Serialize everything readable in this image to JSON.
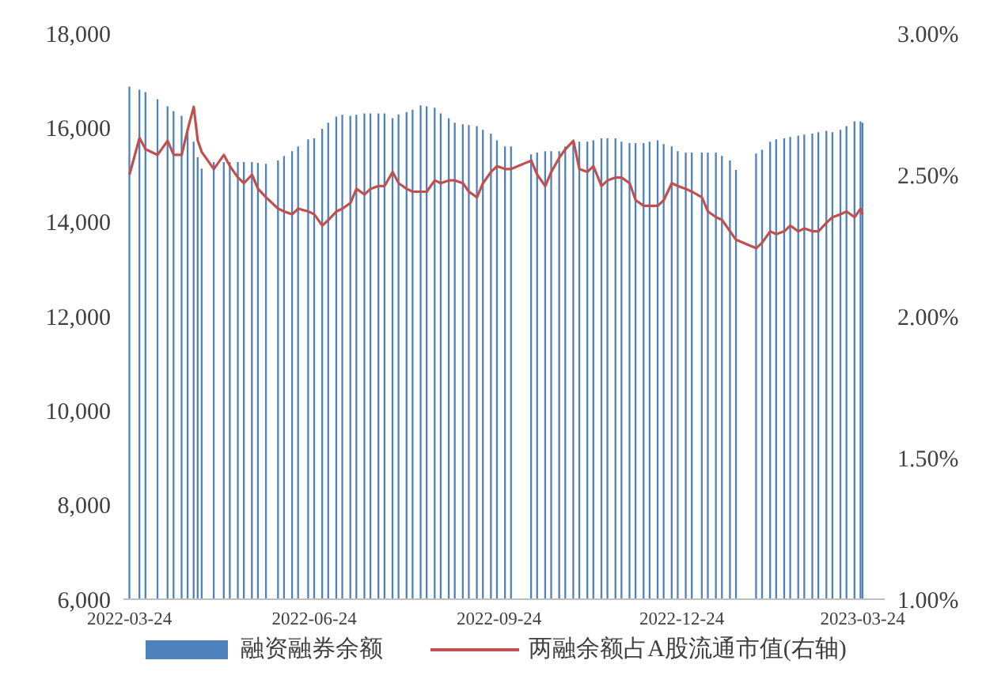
{
  "chart_data": {
    "type": "bar",
    "x": [
      "2022-03-24",
      "2022-03-29",
      "2022-04-01",
      "2022-04-07",
      "2022-04-12",
      "2022-04-15",
      "2022-04-19",
      "2022-04-22",
      "2022-04-25",
      "2022-04-27",
      "2022-04-29",
      "2022-05-05",
      "2022-05-10",
      "2022-05-13",
      "2022-05-17",
      "2022-05-20",
      "2022-05-24",
      "2022-05-27",
      "2022-05-31",
      "2022-06-06",
      "2022-06-09",
      "2022-06-13",
      "2022-06-16",
      "2022-06-21",
      "2022-06-24",
      "2022-06-28",
      "2022-07-01",
      "2022-07-05",
      "2022-07-08",
      "2022-07-12",
      "2022-07-15",
      "2022-07-19",
      "2022-07-22",
      "2022-07-26",
      "2022-07-29",
      "2022-08-02",
      "2022-08-05",
      "2022-08-09",
      "2022-08-12",
      "2022-08-16",
      "2022-08-19",
      "2022-08-23",
      "2022-08-26",
      "2022-08-30",
      "2022-09-02",
      "2022-09-06",
      "2022-09-09",
      "2022-09-13",
      "2022-09-16",
      "2022-09-20",
      "2022-09-23",
      "2022-09-27",
      "2022-09-30",
      "2022-10-10",
      "2022-10-13",
      "2022-10-17",
      "2022-10-20",
      "2022-10-24",
      "2022-10-27",
      "2022-10-31",
      "2022-11-03",
      "2022-11-07",
      "2022-11-10",
      "2022-11-14",
      "2022-11-17",
      "2022-11-21",
      "2022-11-24",
      "2022-11-28",
      "2022-12-01",
      "2022-12-05",
      "2022-12-08",
      "2022-12-12",
      "2022-12-15",
      "2022-12-19",
      "2022-12-22",
      "2022-12-26",
      "2022-12-29",
      "2023-01-03",
      "2023-01-06",
      "2023-01-10",
      "2023-01-13",
      "2023-01-17",
      "2023-01-20",
      "2023-01-30",
      "2023-02-02",
      "2023-02-06",
      "2023-02-09",
      "2023-02-13",
      "2023-02-16",
      "2023-02-20",
      "2023-02-23",
      "2023-02-27",
      "2023-03-02",
      "2023-03-06",
      "2023-03-09",
      "2023-03-13",
      "2023-03-16",
      "2023-03-20",
      "2023-03-23",
      "2023-03-24"
    ],
    "series": [
      {
        "name": "融资融券余额",
        "color": "#4f81bd",
        "values": [
          16870,
          16800,
          16750,
          16600,
          16450,
          16350,
          16250,
          15970,
          15700,
          15370,
          15130,
          15270,
          15270,
          15270,
          15270,
          15270,
          15270,
          15250,
          15230,
          15300,
          15400,
          15500,
          15600,
          15750,
          15770,
          15970,
          16100,
          16230,
          16270,
          16250,
          16270,
          16300,
          16300,
          16300,
          16300,
          16200,
          16280,
          16330,
          16380,
          16470,
          16450,
          16420,
          16300,
          16200,
          16100,
          16070,
          16050,
          16030,
          15950,
          15870,
          15730,
          15600,
          15600,
          15430,
          15470,
          15500,
          15500,
          15500,
          15600,
          15700,
          15700,
          15700,
          15730,
          15770,
          15770,
          15770,
          15700,
          15670,
          15670,
          15670,
          15700,
          15730,
          15650,
          15600,
          15500,
          15470,
          15470,
          15470,
          15470,
          15470,
          15400,
          15300,
          15100,
          15450,
          15530,
          15700,
          15750,
          15770,
          15800,
          15830,
          15850,
          15870,
          15900,
          15930,
          15900,
          15950,
          16030,
          16130,
          16130,
          16100
        ]
      },
      {
        "name": "两融余额占A股流通市值(右轴)",
        "type": "line",
        "axis": "y2",
        "color": "#c0504d",
        "values": [
          2.5,
          2.63,
          2.59,
          2.57,
          2.62,
          2.57,
          2.57,
          2.66,
          2.74,
          2.62,
          2.58,
          2.52,
          2.57,
          2.53,
          2.49,
          2.47,
          2.5,
          2.45,
          2.42,
          2.38,
          2.37,
          2.36,
          2.38,
          2.37,
          2.36,
          2.32,
          2.34,
          2.37,
          2.38,
          2.4,
          2.45,
          2.43,
          2.45,
          2.46,
          2.46,
          2.51,
          2.47,
          2.45,
          2.44,
          2.44,
          2.44,
          2.48,
          2.47,
          2.48,
          2.48,
          2.47,
          2.44,
          2.42,
          2.47,
          2.51,
          2.53,
          2.52,
          2.52,
          2.55,
          2.5,
          2.46,
          2.51,
          2.56,
          2.59,
          2.62,
          2.52,
          2.51,
          2.53,
          2.46,
          2.48,
          2.49,
          2.49,
          2.47,
          2.41,
          2.39,
          2.39,
          2.39,
          2.41,
          2.47,
          2.46,
          2.45,
          2.44,
          2.42,
          2.37,
          2.35,
          2.34,
          2.3,
          2.27,
          2.24,
          2.26,
          2.3,
          2.29,
          2.3,
          2.32,
          2.3,
          2.31,
          2.3,
          2.3,
          2.33,
          2.35,
          2.36,
          2.37,
          2.35,
          2.38,
          2.36
        ]
      }
    ],
    "xlim": [
      "2022-03-21",
      "2023-04-04"
    ],
    "xticks": [
      "2022-03-24",
      "2022-06-24",
      "2022-09-24",
      "2022-12-24",
      "2023-03-24"
    ],
    "ylim": [
      6000,
      18000
    ],
    "yticks": [
      {
        "value": 6000,
        "label": "6,000"
      },
      {
        "value": 8000,
        "label": "8,000"
      },
      {
        "value": 10000,
        "label": "10,000"
      },
      {
        "value": 12000,
        "label": "12,000"
      },
      {
        "value": 14000,
        "label": "14,000"
      },
      {
        "value": 16000,
        "label": "16,000"
      },
      {
        "value": 18000,
        "label": "18,000"
      }
    ],
    "y2lim": [
      1,
      3
    ],
    "y2ticks": [
      {
        "value": 1,
        "label": "1.00%"
      },
      {
        "value": 1.5,
        "label": "1.50%"
      },
      {
        "value": 2,
        "label": "2.00%"
      },
      {
        "value": 2.5,
        "label": "2.50%"
      },
      {
        "value": 3,
        "label": "3.00%"
      }
    ],
    "legend": "bottom",
    "grid": false
  }
}
